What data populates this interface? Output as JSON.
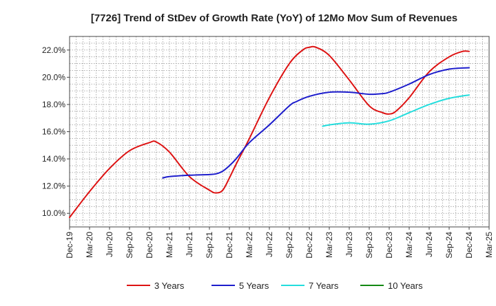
{
  "chart_data": {
    "type": "line",
    "title": "[7726]  Trend of StDev of Growth Rate (YoY) of 12Mo Mov Sum of Revenues",
    "xlabel": "",
    "ylabel": "",
    "ylim": [
      9.0,
      23.0
    ],
    "y_ticks": [
      10.0,
      12.0,
      14.0,
      16.0,
      18.0,
      20.0,
      22.0
    ],
    "y_tick_labels": [
      "10.0%",
      "12.0%",
      "14.0%",
      "16.0%",
      "18.0%",
      "20.0%",
      "22.0%"
    ],
    "x_range": [
      0,
      63
    ],
    "x_ticks": [
      0,
      3,
      6,
      9,
      12,
      15,
      18,
      21,
      24,
      27,
      30,
      33,
      36,
      39,
      42,
      45,
      48,
      51,
      54,
      57,
      60,
      63
    ],
    "x_tick_labels": [
      "Dec-19",
      "Mar-20",
      "Jun-20",
      "Sep-20",
      "Dec-20",
      "Mar-21",
      "Jun-21",
      "Sep-21",
      "Dec-21",
      "Mar-22",
      "Jun-22",
      "Sep-22",
      "Dec-22",
      "Mar-23",
      "Jun-23",
      "Sep-23",
      "Dec-23",
      "Mar-24",
      "Jun-24",
      "Sep-24",
      "Dec-24",
      "Mar-25"
    ],
    "grid": true,
    "legend_position": "bottom",
    "series": [
      {
        "name": "3 Years",
        "color": "#dd1111",
        "x": [
          0,
          3,
          6,
          9,
          12,
          13,
          15,
          18,
          21,
          22,
          23,
          24,
          25,
          27,
          30,
          33,
          35,
          36,
          37,
          39,
          42,
          45,
          47,
          48,
          49,
          51,
          54,
          57,
          59,
          60
        ],
        "y": [
          9.7,
          11.6,
          13.3,
          14.6,
          15.2,
          15.25,
          14.5,
          12.7,
          11.7,
          11.5,
          11.7,
          12.6,
          13.6,
          15.5,
          18.5,
          21.0,
          22.0,
          22.2,
          22.2,
          21.6,
          19.8,
          17.9,
          17.4,
          17.3,
          17.5,
          18.5,
          20.4,
          21.5,
          21.9,
          21.9
        ]
      },
      {
        "name": "5 Years",
        "color": "#1c1ccc",
        "x": [
          14,
          15,
          18,
          21,
          22,
          23,
          24,
          25,
          27,
          30,
          33,
          34,
          36,
          39,
          42,
          45,
          47,
          48,
          51,
          54,
          57,
          60
        ],
        "y": [
          12.6,
          12.7,
          12.8,
          12.85,
          12.9,
          13.1,
          13.5,
          14.0,
          15.2,
          16.5,
          17.9,
          18.2,
          18.6,
          18.9,
          18.9,
          18.75,
          18.8,
          18.9,
          19.5,
          20.2,
          20.6,
          20.7
        ]
      },
      {
        "name": "7 Years",
        "color": "#22dddd",
        "x": [
          38,
          39,
          42,
          45,
          48,
          51,
          54,
          57,
          60
        ],
        "y": [
          16.4,
          16.5,
          16.65,
          16.55,
          16.8,
          17.4,
          18.0,
          18.45,
          18.7
        ]
      },
      {
        "name": "10 Years",
        "color": "#118811",
        "x": [],
        "y": []
      }
    ]
  }
}
